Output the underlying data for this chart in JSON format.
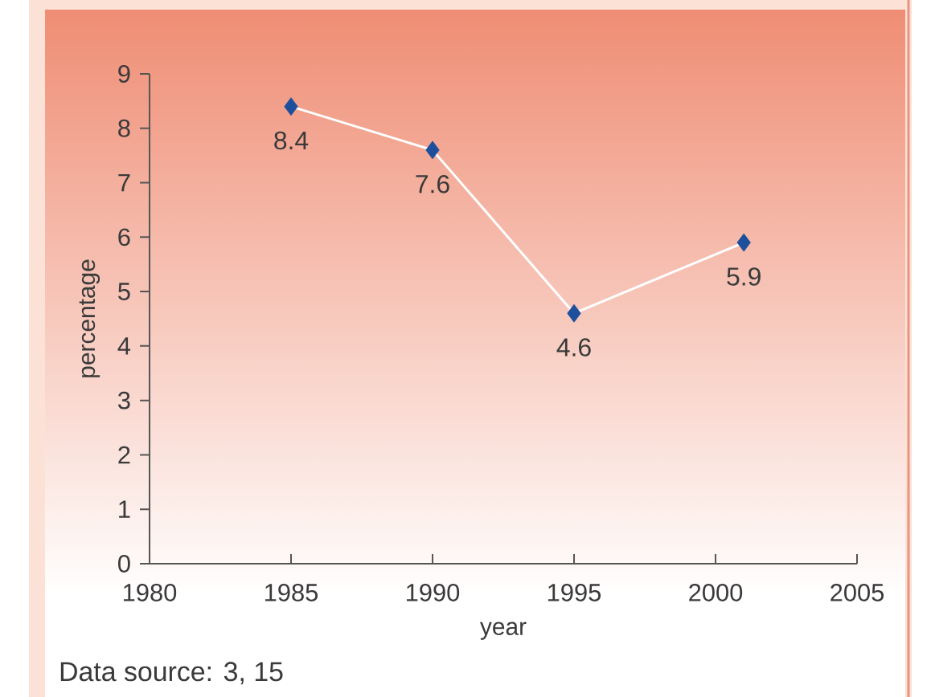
{
  "chart_data": {
    "type": "line",
    "xlabel": "year",
    "ylabel": "percentage",
    "annotations": [
      "Data source: 3, 15"
    ],
    "x": [
      1985,
      1990,
      1995,
      2001
    ],
    "series": [
      {
        "color": "#ffffff",
        "colors": [
          "#1d4f9c",
          "#1d4f9c",
          "#1d4f9c",
          "#1d4f9c"
        ],
        "values": [
          8.4,
          7.6,
          4.6,
          5.9
        ]
      }
    ],
    "xlim": [
      1980,
      2005
    ],
    "xticks": [
      1980,
      1985,
      1990,
      1995,
      2000,
      2005
    ],
    "ylim": [
      0,
      9
    ],
    "yticks": [
      0,
      1,
      2,
      3,
      4,
      5,
      6,
      7,
      8,
      9
    ],
    "marker": "diamond",
    "data_labels": true
  }
}
